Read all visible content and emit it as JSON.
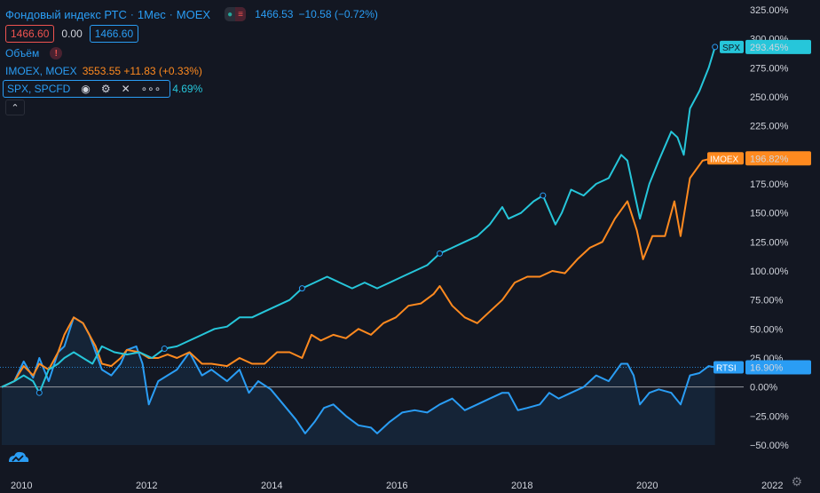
{
  "header": {
    "title": "Фондовый индекс РТС",
    "interval": "1Мес",
    "exchange": "MOEX",
    "last_price": "1466.53",
    "change": "−10.58 (−0.72%)",
    "bid": "1466.60",
    "spread": "0.00",
    "ask": "1466.60"
  },
  "volume": {
    "label": "Объём"
  },
  "imoex_legend": {
    "label": "IMOEX, MOEX",
    "value": "3553.55 +11.83 (+0.33%)"
  },
  "spx_legend": {
    "label": "SPX, SPCFD",
    "value": "4.69%"
  },
  "colors": {
    "bg": "#131722",
    "rtsi": "#2a9df4",
    "imoex": "#ff8a1f",
    "spx": "#26c6da",
    "grid": "#2a2e39"
  },
  "chart_data": {
    "type": "line",
    "title": "Фондовый индекс РТС",
    "y_unit": "%",
    "ylim": [
      -57,
      330
    ],
    "x_range": [
      2009.9,
      2022.2
    ],
    "x_ticks": [
      "2010",
      "2012",
      "2014",
      "2016",
      "2018",
      "2020",
      "2022"
    ],
    "y_ticks": [
      "325.00%",
      "300.00%",
      "275.00%",
      "250.00%",
      "225.00%",
      "200.00%",
      "175.00%",
      "150.00%",
      "125.00%",
      "100.00%",
      "75.00%",
      "50.00%",
      "25.00%",
      "0.00%",
      "−25.00%",
      "−50.00%"
    ],
    "series": [
      {
        "name": "RTSI",
        "color": "#2a9df4",
        "last_label": "16.90%",
        "points": [
          [
            2010.0,
            0
          ],
          [
            2010.2,
            5
          ],
          [
            2010.35,
            22
          ],
          [
            2010.5,
            8
          ],
          [
            2010.6,
            25
          ],
          [
            2010.75,
            5
          ],
          [
            2010.9,
            30
          ],
          [
            2011.0,
            35
          ],
          [
            2011.15,
            60
          ],
          [
            2011.3,
            55
          ],
          [
            2011.4,
            45
          ],
          [
            2011.5,
            30
          ],
          [
            2011.6,
            15
          ],
          [
            2011.75,
            10
          ],
          [
            2011.9,
            20
          ],
          [
            2012.0,
            32
          ],
          [
            2012.15,
            35
          ],
          [
            2012.25,
            20
          ],
          [
            2012.35,
            -15
          ],
          [
            2012.5,
            5
          ],
          [
            2012.65,
            10
          ],
          [
            2012.8,
            15
          ],
          [
            2013.0,
            30
          ],
          [
            2013.2,
            10
          ],
          [
            2013.35,
            15
          ],
          [
            2013.6,
            5
          ],
          [
            2013.8,
            15
          ],
          [
            2013.95,
            -5
          ],
          [
            2014.1,
            5
          ],
          [
            2014.3,
            -2
          ],
          [
            2014.5,
            -15
          ],
          [
            2014.7,
            -28
          ],
          [
            2014.85,
            -40
          ],
          [
            2015.0,
            -30
          ],
          [
            2015.15,
            -18
          ],
          [
            2015.3,
            -15
          ],
          [
            2015.5,
            -25
          ],
          [
            2015.7,
            -33
          ],
          [
            2015.9,
            -35
          ],
          [
            2016.0,
            -40
          ],
          [
            2016.2,
            -30
          ],
          [
            2016.4,
            -22
          ],
          [
            2016.6,
            -20
          ],
          [
            2016.8,
            -22
          ],
          [
            2017.0,
            -15
          ],
          [
            2017.2,
            -10
          ],
          [
            2017.4,
            -20
          ],
          [
            2017.6,
            -15
          ],
          [
            2017.8,
            -10
          ],
          [
            2018.0,
            -5
          ],
          [
            2018.1,
            -5
          ],
          [
            2018.25,
            -20
          ],
          [
            2018.4,
            -18
          ],
          [
            2018.6,
            -15
          ],
          [
            2018.75,
            -5
          ],
          [
            2018.9,
            -10
          ],
          [
            2019.1,
            -5
          ],
          [
            2019.3,
            0
          ],
          [
            2019.5,
            10
          ],
          [
            2019.7,
            5
          ],
          [
            2019.9,
            20
          ],
          [
            2020.0,
            20
          ],
          [
            2020.1,
            10
          ],
          [
            2020.2,
            -15
          ],
          [
            2020.35,
            -5
          ],
          [
            2020.5,
            -2
          ],
          [
            2020.7,
            -5
          ],
          [
            2020.85,
            -15
          ],
          [
            2021.0,
            10
          ],
          [
            2021.15,
            12
          ],
          [
            2021.3,
            18
          ],
          [
            2021.4,
            17
          ]
        ]
      },
      {
        "name": "IMOEX",
        "color": "#ff8a1f",
        "last_label": "196.82%",
        "points": [
          [
            2010.0,
            0
          ],
          [
            2010.2,
            5
          ],
          [
            2010.35,
            18
          ],
          [
            2010.5,
            10
          ],
          [
            2010.6,
            20
          ],
          [
            2010.75,
            15
          ],
          [
            2010.9,
            30
          ],
          [
            2011.0,
            45
          ],
          [
            2011.15,
            60
          ],
          [
            2011.3,
            55
          ],
          [
            2011.4,
            45
          ],
          [
            2011.5,
            35
          ],
          [
            2011.6,
            20
          ],
          [
            2011.75,
            18
          ],
          [
            2011.9,
            25
          ],
          [
            2012.0,
            32
          ],
          [
            2012.2,
            30
          ],
          [
            2012.35,
            25
          ],
          [
            2012.5,
            25
          ],
          [
            2012.65,
            28
          ],
          [
            2012.8,
            25
          ],
          [
            2013.0,
            30
          ],
          [
            2013.2,
            20
          ],
          [
            2013.35,
            20
          ],
          [
            2013.6,
            18
          ],
          [
            2013.8,
            25
          ],
          [
            2014.0,
            20
          ],
          [
            2014.2,
            20
          ],
          [
            2014.4,
            30
          ],
          [
            2014.6,
            30
          ],
          [
            2014.8,
            25
          ],
          [
            2014.95,
            45
          ],
          [
            2015.1,
            40
          ],
          [
            2015.3,
            45
          ],
          [
            2015.5,
            42
          ],
          [
            2015.7,
            50
          ],
          [
            2015.9,
            45
          ],
          [
            2016.1,
            55
          ],
          [
            2016.3,
            60
          ],
          [
            2016.5,
            70
          ],
          [
            2016.7,
            72
          ],
          [
            2016.9,
            80
          ],
          [
            2017.0,
            87
          ],
          [
            2017.2,
            70
          ],
          [
            2017.4,
            60
          ],
          [
            2017.6,
            55
          ],
          [
            2017.8,
            65
          ],
          [
            2018.0,
            75
          ],
          [
            2018.2,
            90
          ],
          [
            2018.4,
            95
          ],
          [
            2018.6,
            95
          ],
          [
            2018.8,
            100
          ],
          [
            2019.0,
            98
          ],
          [
            2019.2,
            110
          ],
          [
            2019.4,
            120
          ],
          [
            2019.6,
            125
          ],
          [
            2019.8,
            145
          ],
          [
            2020.0,
            160
          ],
          [
            2020.15,
            135
          ],
          [
            2020.25,
            110
          ],
          [
            2020.4,
            130
          ],
          [
            2020.6,
            130
          ],
          [
            2020.75,
            160
          ],
          [
            2020.85,
            130
          ],
          [
            2021.0,
            180
          ],
          [
            2021.2,
            195
          ],
          [
            2021.35,
            197
          ]
        ]
      },
      {
        "name": "SPX",
        "color": "#26c6da",
        "last_label": "293.45%",
        "points": [
          [
            2010.0,
            0
          ],
          [
            2010.2,
            5
          ],
          [
            2010.35,
            10
          ],
          [
            2010.5,
            5
          ],
          [
            2010.6,
            -5
          ],
          [
            2010.75,
            15
          ],
          [
            2010.9,
            20
          ],
          [
            2011.0,
            25
          ],
          [
            2011.15,
            30
          ],
          [
            2011.3,
            25
          ],
          [
            2011.45,
            20
          ],
          [
            2011.6,
            35
          ],
          [
            2011.8,
            30
          ],
          [
            2012.0,
            28
          ],
          [
            2012.2,
            30
          ],
          [
            2012.4,
            25
          ],
          [
            2012.6,
            33
          ],
          [
            2012.8,
            35
          ],
          [
            2013.0,
            40
          ],
          [
            2013.2,
            45
          ],
          [
            2013.4,
            50
          ],
          [
            2013.6,
            52
          ],
          [
            2013.8,
            60
          ],
          [
            2014.0,
            60
          ],
          [
            2014.2,
            65
          ],
          [
            2014.4,
            70
          ],
          [
            2014.6,
            75
          ],
          [
            2014.8,
            85
          ],
          [
            2015.0,
            90
          ],
          [
            2015.2,
            95
          ],
          [
            2015.4,
            90
          ],
          [
            2015.6,
            85
          ],
          [
            2015.8,
            90
          ],
          [
            2016.0,
            85
          ],
          [
            2016.2,
            90
          ],
          [
            2016.4,
            95
          ],
          [
            2016.6,
            100
          ],
          [
            2016.8,
            105
          ],
          [
            2017.0,
            115
          ],
          [
            2017.2,
            120
          ],
          [
            2017.4,
            125
          ],
          [
            2017.6,
            130
          ],
          [
            2017.8,
            140
          ],
          [
            2018.0,
            155
          ],
          [
            2018.1,
            145
          ],
          [
            2018.3,
            150
          ],
          [
            2018.5,
            160
          ],
          [
            2018.65,
            165
          ],
          [
            2018.85,
            140
          ],
          [
            2018.95,
            150
          ],
          [
            2019.1,
            170
          ],
          [
            2019.3,
            165
          ],
          [
            2019.5,
            175
          ],
          [
            2019.7,
            180
          ],
          [
            2019.9,
            200
          ],
          [
            2020.0,
            195
          ],
          [
            2020.1,
            170
          ],
          [
            2020.2,
            145
          ],
          [
            2020.35,
            175
          ],
          [
            2020.5,
            195
          ],
          [
            2020.7,
            220
          ],
          [
            2020.8,
            215
          ],
          [
            2020.9,
            200
          ],
          [
            2021.0,
            240
          ],
          [
            2021.15,
            255
          ],
          [
            2021.3,
            275
          ],
          [
            2021.4,
            293
          ]
        ]
      }
    ]
  }
}
